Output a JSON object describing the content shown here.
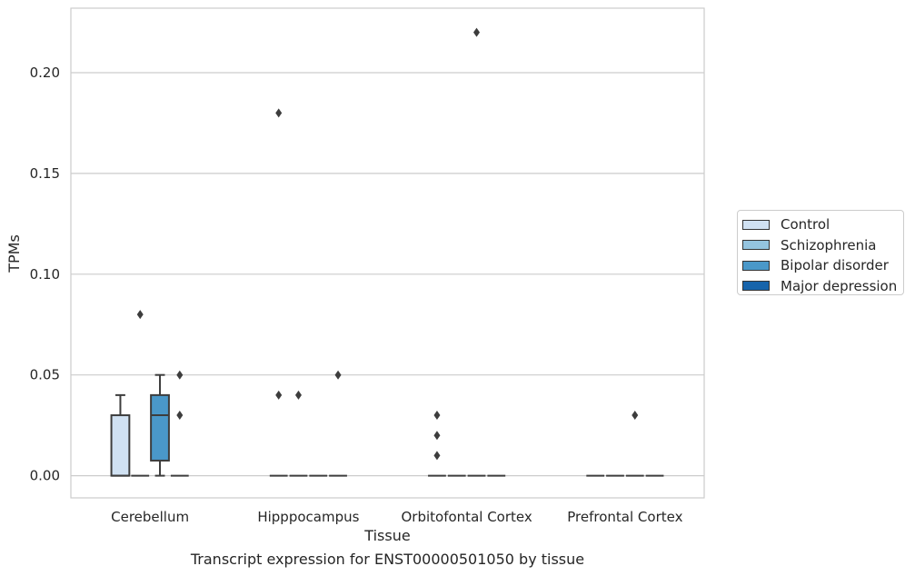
{
  "chart_data": {
    "type": "box",
    "title": "",
    "caption": "Transcript expression for ENST00000501050 by tissue",
    "xlabel": "Tissue",
    "ylabel": "TPMs",
    "ylim": [
      -0.011,
      0.232
    ],
    "yticks": [
      "0.00",
      "0.05",
      "0.10",
      "0.15",
      "0.20"
    ],
    "grid": "horizontal",
    "legend_position": "right",
    "categories": [
      "Cerebellum",
      "Hipppocampus",
      "Orbitofontal Cortex",
      "Prefrontal Cortex"
    ],
    "series": [
      {
        "name": "Control",
        "color": "#d0e1f2",
        "boxes": [
          {
            "q1": 0.0,
            "median": 0.0,
            "q3": 0.03,
            "whisker_low": 0.0,
            "whisker_high": 0.04,
            "outliers": []
          },
          {
            "q1": 0.0,
            "median": 0.0,
            "q3": 0.0,
            "whisker_low": 0.0,
            "whisker_high": 0.0,
            "outliers": [
              0.04,
              0.18
            ]
          },
          {
            "q1": 0.0,
            "median": 0.0,
            "q3": 0.0,
            "whisker_low": 0.0,
            "whisker_high": 0.0,
            "outliers": [
              0.01,
              0.02,
              0.03
            ]
          },
          {
            "q1": 0.0,
            "median": 0.0,
            "q3": 0.0,
            "whisker_low": 0.0,
            "whisker_high": 0.0,
            "outliers": []
          }
        ]
      },
      {
        "name": "Schizophrenia",
        "color": "#94c4df",
        "boxes": [
          {
            "q1": 0.0,
            "median": 0.0,
            "q3": 0.0,
            "whisker_low": 0.0,
            "whisker_high": 0.0,
            "outliers": [
              0.08
            ]
          },
          {
            "q1": 0.0,
            "median": 0.0,
            "q3": 0.0,
            "whisker_low": 0.0,
            "whisker_high": 0.0,
            "outliers": [
              0.04
            ]
          },
          {
            "q1": 0.0,
            "median": 0.0,
            "q3": 0.0,
            "whisker_low": 0.0,
            "whisker_high": 0.0,
            "outliers": []
          },
          {
            "q1": 0.0,
            "median": 0.0,
            "q3": 0.0,
            "whisker_low": 0.0,
            "whisker_high": 0.0,
            "outliers": []
          }
        ]
      },
      {
        "name": "Bipolar disorder",
        "color": "#4a98c9",
        "boxes": [
          {
            "q1": 0.0075,
            "median": 0.03,
            "q3": 0.04,
            "whisker_low": 0.0,
            "whisker_high": 0.05,
            "outliers": []
          },
          {
            "q1": 0.0,
            "median": 0.0,
            "q3": 0.0,
            "whisker_low": 0.0,
            "whisker_high": 0.0,
            "outliers": []
          },
          {
            "q1": 0.0,
            "median": 0.0,
            "q3": 0.0,
            "whisker_low": 0.0,
            "whisker_high": 0.0,
            "outliers": [
              0.22
            ]
          },
          {
            "q1": 0.0,
            "median": 0.0,
            "q3": 0.0,
            "whisker_low": 0.0,
            "whisker_high": 0.0,
            "outliers": [
              0.03
            ]
          }
        ]
      },
      {
        "name": "Major depression",
        "color": "#1764ab",
        "boxes": [
          {
            "q1": 0.0,
            "median": 0.0,
            "q3": 0.0,
            "whisker_low": 0.0,
            "whisker_high": 0.0,
            "outliers": [
              0.03,
              0.05
            ]
          },
          {
            "q1": 0.0,
            "median": 0.0,
            "q3": 0.0,
            "whisker_low": 0.0,
            "whisker_high": 0.0,
            "outliers": [
              0.05
            ]
          },
          {
            "q1": 0.0,
            "median": 0.0,
            "q3": 0.0,
            "whisker_low": 0.0,
            "whisker_high": 0.0,
            "outliers": []
          },
          {
            "q1": 0.0,
            "median": 0.0,
            "q3": 0.0,
            "whisker_low": 0.0,
            "whisker_high": 0.0,
            "outliers": []
          }
        ]
      }
    ]
  }
}
